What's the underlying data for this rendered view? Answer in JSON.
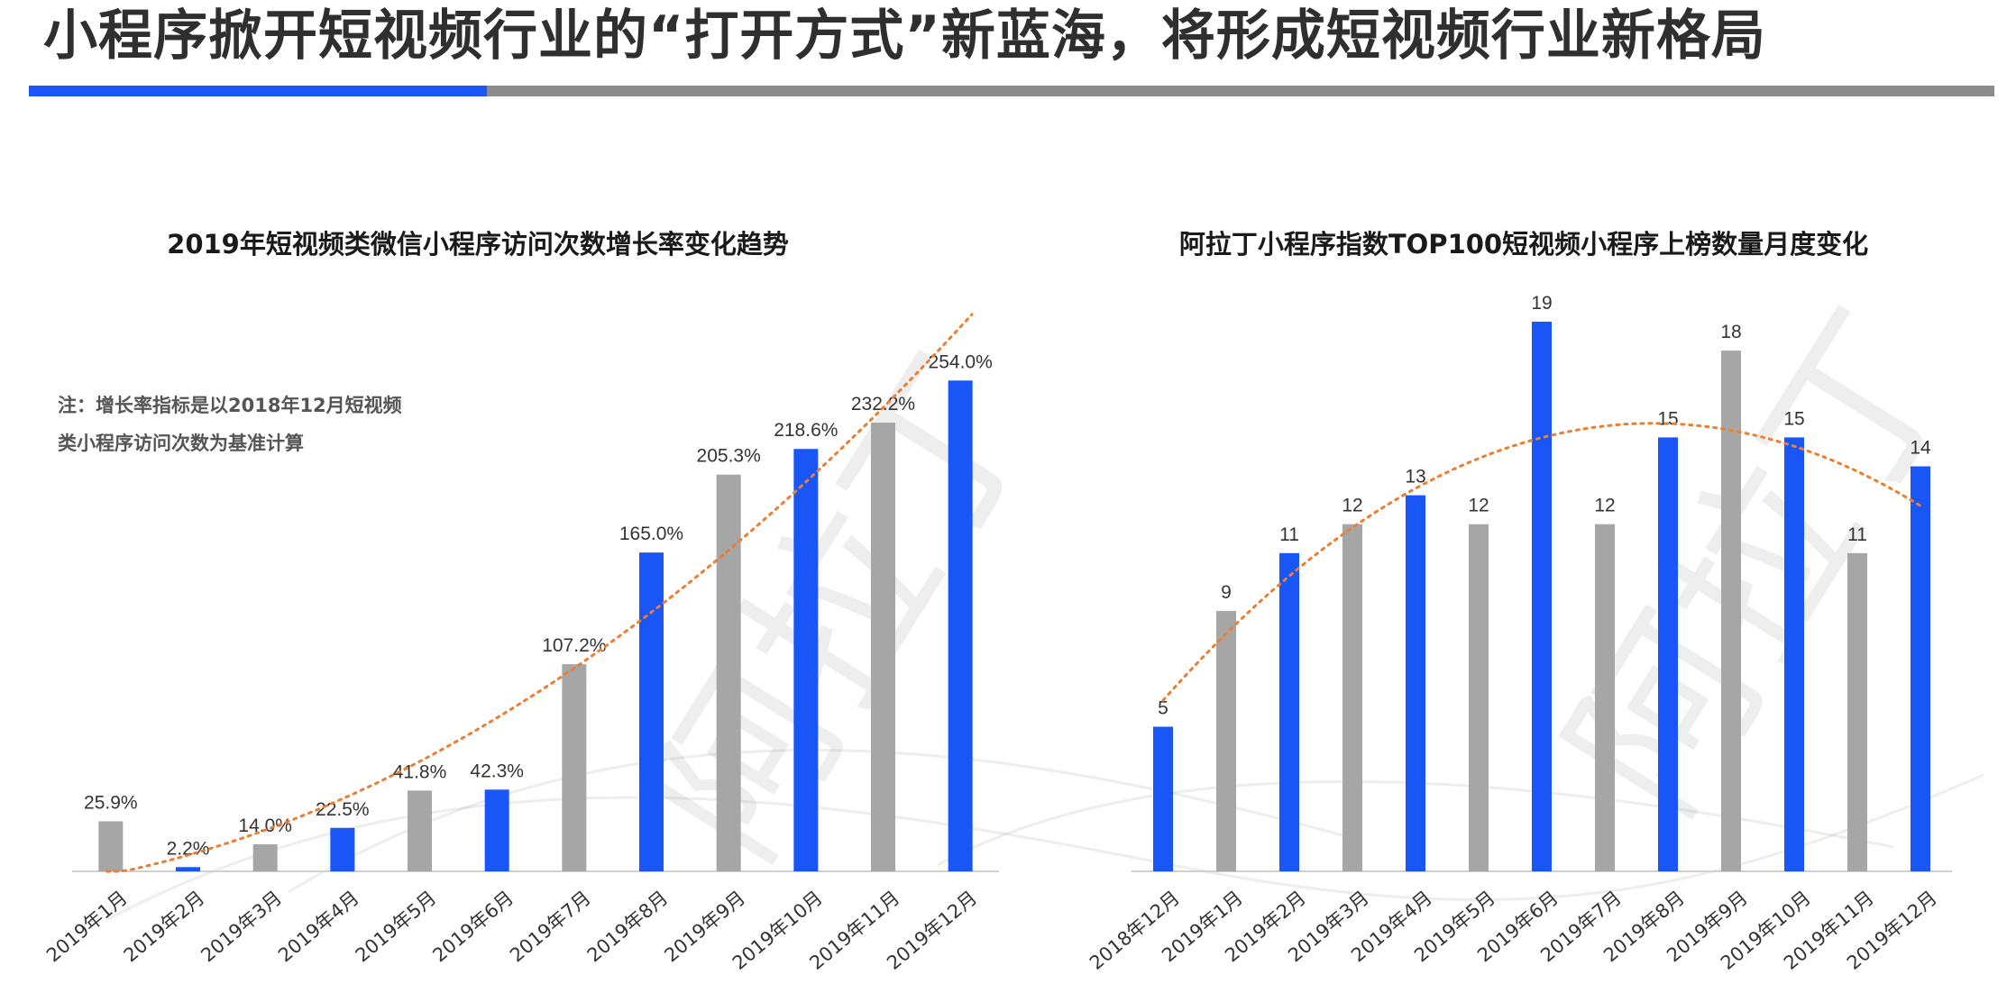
{
  "page": {
    "title": "小程序掀开短视频行业的“打开方式”新蓝海，将形成短视频行业新格局",
    "watermark": "阿拉丁"
  },
  "colors": {
    "accent_blue": "#1a55f5",
    "bar_gray": "#a6a6a6",
    "trend_orange": "#ed7d31",
    "rule_gray": "#8c8c8c",
    "axis_gray": "#d0d0d0"
  },
  "note": {
    "line1": "注：增长率指标是以2018年12月短视频",
    "line2": "类小程序访问次数为基准计算"
  },
  "chart_data": [
    {
      "type": "bar",
      "title": "2019年短视频类微信小程序访问次数增长率变化趋势",
      "xlabel": "",
      "ylabel": "",
      "unit": "%",
      "categories": [
        "2019年1月",
        "2019年2月",
        "2019年3月",
        "2019年4月",
        "2019年5月",
        "2019年6月",
        "2019年7月",
        "2019年8月",
        "2019年9月",
        "2019年10月",
        "2019年11月",
        "2019年12月"
      ],
      "values": [
        25.9,
        2.2,
        14.0,
        22.5,
        41.8,
        42.3,
        107.2,
        165.0,
        205.3,
        218.6,
        232.2,
        254.0
      ],
      "labels": [
        "25.9%",
        "2.2%",
        "14.0%",
        "22.5%",
        "41.8%",
        "42.3%",
        "107.2%",
        "165.0%",
        "205.3%",
        "218.6%",
        "232.2%",
        "254.0%"
      ],
      "bar_colors": [
        "gray",
        "blue",
        "gray",
        "blue",
        "gray",
        "blue",
        "gray",
        "blue",
        "gray",
        "blue",
        "gray",
        "blue"
      ],
      "ylim": [
        0,
        270
      ],
      "trendline": "polynomial",
      "grid": false,
      "legend": "none"
    },
    {
      "type": "bar",
      "title": "阿拉丁小程序指数TOP100短视频小程序上榜数量月度变化",
      "xlabel": "",
      "ylabel": "",
      "categories": [
        "2018年12月",
        "2019年1月",
        "2019年2月",
        "2019年3月",
        "2019年4月",
        "2019年5月",
        "2019年6月",
        "2019年7月",
        "2019年8月",
        "2019年9月",
        "2019年10月",
        "2019年11月",
        "2019年12月"
      ],
      "values": [
        5,
        9,
        11,
        12,
        13,
        12,
        19,
        12,
        15,
        18,
        15,
        11,
        14
      ],
      "labels": [
        "5",
        "9",
        "11",
        "12",
        "13",
        "12",
        "19",
        "12",
        "15",
        "18",
        "15",
        "11",
        "14"
      ],
      "bar_colors": [
        "blue",
        "gray",
        "blue",
        "gray",
        "blue",
        "gray",
        "blue",
        "gray",
        "blue",
        "gray",
        "blue",
        "gray",
        "blue"
      ],
      "ylim": [
        0,
        19
      ],
      "trendline": "polynomial",
      "grid": false,
      "legend": "none"
    }
  ]
}
